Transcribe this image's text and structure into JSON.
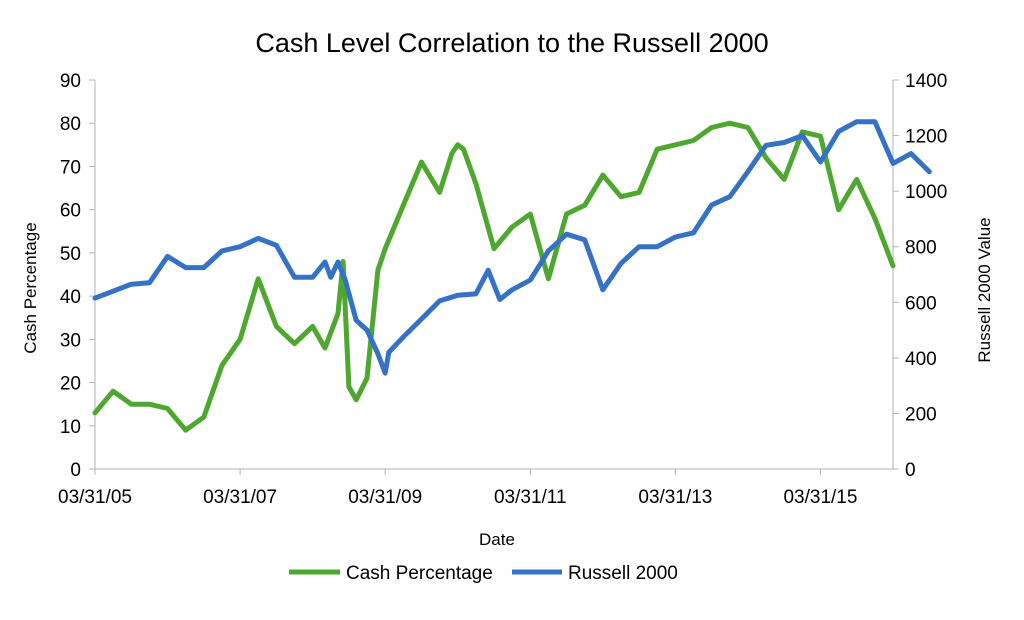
{
  "chart_data": {
    "type": "line",
    "title": "Cash Level Correlation to the Russell 2000",
    "xlabel": "Date",
    "ylabel_left": "Cash Percentage",
    "ylabel_right": "Russell 2000 Value",
    "x_ticks": [
      "03/31/05",
      "03/31/07",
      "03/31/09",
      "03/31/11",
      "03/31/13",
      "03/31/15"
    ],
    "x_range": [
      2005.25,
      2016.25
    ],
    "ylim_left": [
      0,
      90
    ],
    "yticks_left": [
      0,
      10,
      20,
      30,
      40,
      50,
      60,
      70,
      80,
      90
    ],
    "ylim_right": [
      0,
      1400
    ],
    "yticks_right": [
      0,
      200,
      400,
      600,
      800,
      1000,
      1200,
      1400
    ],
    "legend_position": "bottom",
    "grid": false,
    "series": [
      {
        "name": "Cash Percentage",
        "axis": "left",
        "color": "#4ea72e",
        "points": [
          [
            2005.25,
            13
          ],
          [
            2005.5,
            18
          ],
          [
            2005.75,
            15
          ],
          [
            2006.0,
            15
          ],
          [
            2006.25,
            14
          ],
          [
            2006.5,
            9
          ],
          [
            2006.75,
            12
          ],
          [
            2007.0,
            24
          ],
          [
            2007.25,
            30
          ],
          [
            2007.5,
            44
          ],
          [
            2007.75,
            33
          ],
          [
            2008.0,
            29
          ],
          [
            2008.25,
            33
          ],
          [
            2008.42,
            28
          ],
          [
            2008.6,
            36
          ],
          [
            2008.67,
            48
          ],
          [
            2008.75,
            19
          ],
          [
            2008.85,
            16
          ],
          [
            2009.0,
            21
          ],
          [
            2009.15,
            46
          ],
          [
            2009.25,
            51
          ],
          [
            2009.5,
            61
          ],
          [
            2009.75,
            71
          ],
          [
            2010.0,
            64
          ],
          [
            2010.17,
            73
          ],
          [
            2010.25,
            75
          ],
          [
            2010.33,
            74
          ],
          [
            2010.5,
            66
          ],
          [
            2010.75,
            51
          ],
          [
            2011.0,
            56
          ],
          [
            2011.25,
            59
          ],
          [
            2011.5,
            44
          ],
          [
            2011.75,
            59
          ],
          [
            2012.0,
            61
          ],
          [
            2012.25,
            68
          ],
          [
            2012.5,
            63
          ],
          [
            2012.75,
            64
          ],
          [
            2013.0,
            74
          ],
          [
            2013.5,
            76
          ],
          [
            2013.75,
            79
          ],
          [
            2014.0,
            80
          ],
          [
            2014.25,
            79
          ],
          [
            2014.5,
            72
          ],
          [
            2014.75,
            67
          ],
          [
            2015.0,
            78
          ],
          [
            2015.25,
            77
          ],
          [
            2015.5,
            60
          ],
          [
            2015.75,
            67
          ],
          [
            2016.0,
            58
          ],
          [
            2016.25,
            47
          ]
        ]
      },
      {
        "name": "Russell 2000",
        "axis": "right",
        "color": "#3571c4",
        "points": [
          [
            2005.25,
            615
          ],
          [
            2005.5,
            640
          ],
          [
            2005.75,
            665
          ],
          [
            2006.0,
            670
          ],
          [
            2006.25,
            765
          ],
          [
            2006.5,
            725
          ],
          [
            2006.75,
            725
          ],
          [
            2007.0,
            785
          ],
          [
            2007.25,
            800
          ],
          [
            2007.5,
            830
          ],
          [
            2007.75,
            805
          ],
          [
            2008.0,
            690
          ],
          [
            2008.25,
            690
          ],
          [
            2008.42,
            745
          ],
          [
            2008.5,
            690
          ],
          [
            2008.6,
            745
          ],
          [
            2008.7,
            680
          ],
          [
            2008.85,
            535
          ],
          [
            2009.0,
            500
          ],
          [
            2009.15,
            415
          ],
          [
            2009.25,
            345
          ],
          [
            2009.3,
            420
          ],
          [
            2009.5,
            475
          ],
          [
            2009.75,
            540
          ],
          [
            2010.0,
            605
          ],
          [
            2010.25,
            625
          ],
          [
            2010.5,
            630
          ],
          [
            2010.67,
            715
          ],
          [
            2010.83,
            610
          ],
          [
            2011.0,
            645
          ],
          [
            2011.25,
            680
          ],
          [
            2011.5,
            785
          ],
          [
            2011.75,
            845
          ],
          [
            2012.0,
            825
          ],
          [
            2012.25,
            645
          ],
          [
            2012.5,
            740
          ],
          [
            2012.75,
            800
          ],
          [
            2013.0,
            800
          ],
          [
            2013.25,
            835
          ],
          [
            2013.5,
            850
          ],
          [
            2013.75,
            950
          ],
          [
            2014.0,
            980
          ],
          [
            2014.25,
            1070
          ],
          [
            2014.5,
            1165
          ],
          [
            2014.75,
            1175
          ],
          [
            2015.0,
            1200
          ],
          [
            2015.25,
            1105
          ],
          [
            2015.5,
            1215
          ],
          [
            2015.75,
            1250
          ],
          [
            2016.0,
            1250
          ],
          [
            2016.25,
            1100
          ],
          [
            2016.5,
            1135
          ],
          [
            2016.75,
            1070
          ]
        ]
      }
    ]
  }
}
